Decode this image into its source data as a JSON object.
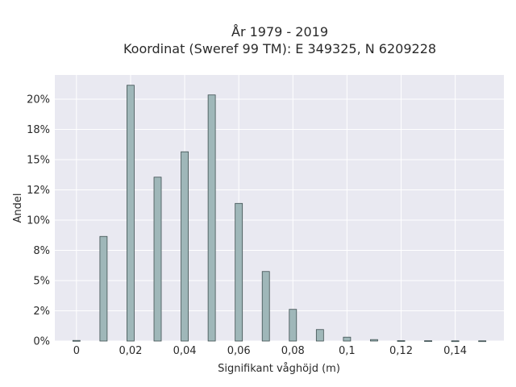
{
  "chart_data": {
    "type": "bar",
    "title_line1": "År 1979 - 2019",
    "title_line2": "Koordinat (Sweref 99 TM): E 349325, N 6209228",
    "xlabel": "Signifikant våghöjd (m)",
    "ylabel": "Andel",
    "x": [
      0,
      0.01,
      0.02,
      0.03,
      0.04,
      0.05,
      0.06,
      0.07,
      0.08,
      0.09,
      0.1,
      0.11,
      0.12,
      0.13,
      0.14,
      0.15
    ],
    "values": [
      0.0005,
      0.0865,
      0.2115,
      0.1355,
      0.1565,
      0.2035,
      0.1138,
      0.0575,
      0.0262,
      0.0095,
      0.0032,
      0.0012,
      0.0004,
      0.0003,
      0.0002,
      0.0002
    ],
    "xlim": [
      -0.008,
      0.158
    ],
    "ylim": [
      0,
      0.22
    ],
    "xticks": [
      0,
      0.02,
      0.04,
      0.06,
      0.08,
      0.1,
      0.12,
      0.14
    ],
    "xtick_labels": [
      "0",
      "0,02",
      "0,04",
      "0,06",
      "0,08",
      "0,1",
      "0,12",
      "0,14"
    ],
    "yticks": [
      0,
      0.025,
      0.05,
      0.075,
      0.1,
      0.125,
      0.15,
      0.175,
      0.2
    ],
    "ytick_labels": [
      "0%",
      "2%",
      "5%",
      "8%",
      "10%",
      "12%",
      "15%",
      "18%",
      "20%"
    ],
    "grid": true,
    "colors": {
      "bar": "#9fb7b9",
      "bar_edge": "#3e4f50",
      "plot_bg": "#e9e9f1",
      "grid": "#ffffff"
    }
  }
}
